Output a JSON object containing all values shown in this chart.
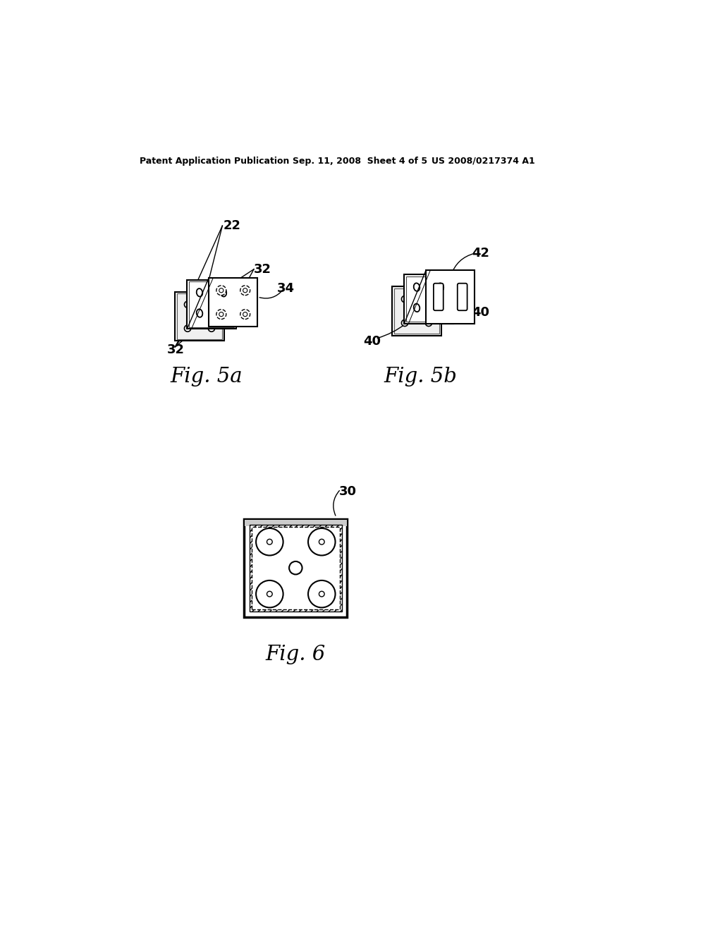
{
  "bg_color": "#ffffff",
  "header_left": "Patent Application Publication",
  "header_mid": "Sep. 11, 2008  Sheet 4 of 5",
  "header_right": "US 2008/0217374 A1",
  "fig5a_label": "Fig. 5a",
  "fig5b_label": "Fig. 5b",
  "fig6_label": "Fig. 6",
  "label_22": "22",
  "label_32a": "32",
  "label_32b": "32",
  "label_34": "34",
  "label_40a": "40",
  "label_40b": "40",
  "label_42": "42",
  "label_30": "30",
  "line_color": "#000000"
}
